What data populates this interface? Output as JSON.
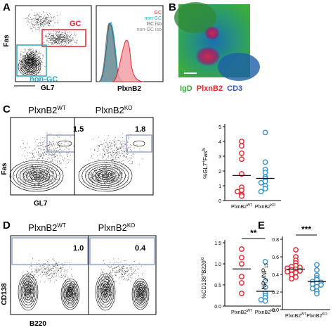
{
  "panels": {
    "A": {
      "letter": "A",
      "y_axis_label": "Fas",
      "x_axis_label": "GL7",
      "gate_gc": "GC",
      "gate_nongc": "non-GC",
      "hist_x_label": "PlxnB2",
      "legend": [
        {
          "label": "GC",
          "color": "#e8222a"
        },
        {
          "label": "non-GC",
          "color": "#2aa6c9"
        },
        {
          "label": "GC iso",
          "color": "#555555"
        },
        {
          "label": "non-GC iso",
          "color": "#888888"
        }
      ]
    },
    "B": {
      "letter": "B",
      "stain_igd": "IgD",
      "stain_plxnb2": "PlxnB2",
      "stain_cd3": "CD3"
    },
    "C": {
      "letter": "C",
      "title_wt_base": "PlxnB2",
      "title_wt_sup": "WT",
      "title_ko_base": "PlxnB2",
      "title_ko_sup": "KO",
      "gate_value_wt": "1.5",
      "gate_value_ko": "1.8",
      "y_axis_label": "Fas",
      "x_axis_label": "GL7",
      "scatter_ylabel": "%GL7⁺Fas^hi"
    },
    "D": {
      "letter": "D",
      "title_wt_base": "PlxnB2",
      "title_wt_sup": "WT",
      "title_ko_base": "PlxnB2",
      "title_ko_sup": "KO",
      "gate_value_wt": "1.0",
      "gate_value_ko": "0.4",
      "y_axis_label": "CD138",
      "x_axis_label": "B220",
      "significance": "**",
      "scatter_ylabel": "%CD138⁺B220^lo"
    },
    "E": {
      "letter": "E",
      "significance": "***",
      "scatter_ylabel": "NP₂/NP₁₅"
    }
  },
  "chart_data": [
    {
      "type": "scatter",
      "panel": "C",
      "categories": [
        "PlxnB2WT",
        "PlxnB2KO"
      ],
      "series": [
        {
          "values": [
            4.0,
            3.7,
            3.2,
            2.8,
            1.8,
            0.9,
            0.7,
            0.6,
            0.4,
            0.3
          ],
          "mean": 1.7,
          "color": "#e8222a"
        },
        {
          "values": [
            4.6,
            2.6,
            2.1,
            1.9,
            1.6,
            1.5,
            1.3,
            1.2,
            1.0,
            0.8,
            0.6
          ],
          "mean": 1.5,
          "color": "#3b8fc8"
        }
      ],
      "ylim": [
        0,
        5
      ],
      "yticks": [
        0,
        1,
        2,
        3,
        4,
        5
      ]
    },
    {
      "type": "scatter",
      "panel": "D",
      "categories": [
        "PlxnB2WT",
        "PlxnB2KO"
      ],
      "series": [
        {
          "values": [
            1.35,
            1.15,
            1.0,
            0.7,
            0.55,
            0.3
          ],
          "mean": 0.88,
          "color": "#e8222a"
        },
        {
          "values": [
            1.05,
            0.6,
            0.45,
            0.3,
            0.25,
            0.2,
            0.15,
            0.12
          ],
          "mean": 0.35,
          "color": "#3b8fc8"
        }
      ],
      "ylim": [
        0,
        1.5
      ],
      "yticks": [
        0.0,
        0.5,
        1.0,
        1.5
      ],
      "significance": "**"
    },
    {
      "type": "scatter",
      "panel": "E",
      "categories": [
        "PlxnB2WT",
        "PlxnB2KO"
      ],
      "series": [
        {
          "values": [
            0.68,
            0.6,
            0.56,
            0.53,
            0.5,
            0.49,
            0.48,
            0.47,
            0.46,
            0.45,
            0.44,
            0.43,
            0.42,
            0.4,
            0.37,
            0.35
          ],
          "mean": 0.46,
          "color": "#e8222a"
        },
        {
          "values": [
            0.51,
            0.45,
            0.39,
            0.36,
            0.34,
            0.32,
            0.31,
            0.3,
            0.29,
            0.28,
            0.26,
            0.24,
            0.21,
            0.18
          ],
          "mean": 0.32,
          "color": "#3b8fc8"
        }
      ],
      "ylim": [
        0,
        0.8
      ],
      "yticks": [
        0.0,
        0.2,
        0.4,
        0.6,
        0.8
      ],
      "significance": "***"
    }
  ],
  "category_labels": [
    {
      "base": "PlxnB2",
      "sup": "WT"
    },
    {
      "base": "PlxnB2",
      "sup": "KO"
    }
  ]
}
